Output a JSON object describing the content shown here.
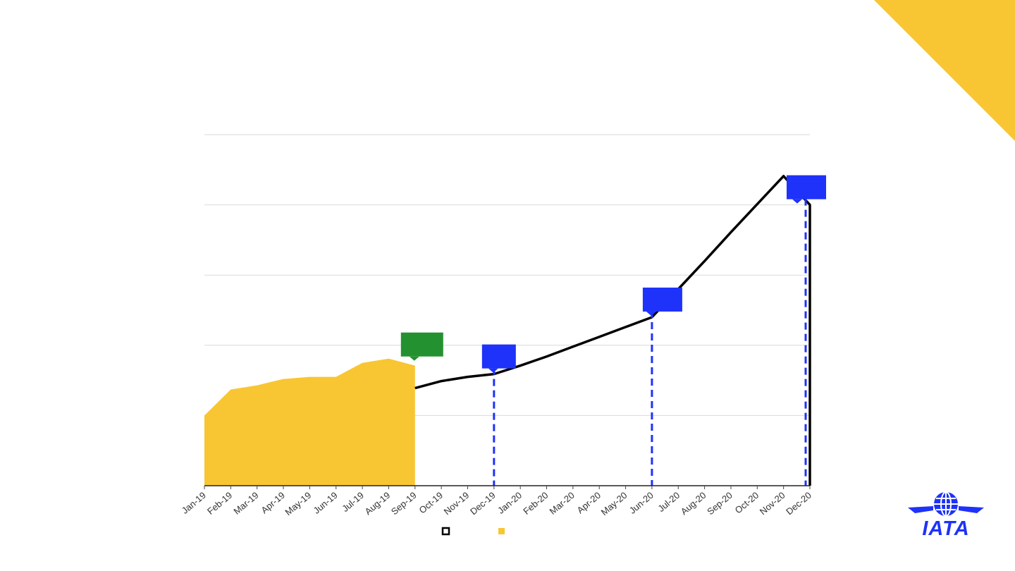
{
  "chart_data": {
    "type": "line",
    "categories": [
      "Jan-19",
      "Feb-19",
      "Mar-19",
      "Apr-19",
      "May-19",
      "Jun-19",
      "Jul-19",
      "Aug-19",
      "Sep-19",
      "Oct-19",
      "Nov-19",
      "Dec-19",
      "Jan-20",
      "Feb-20",
      "Mar-20",
      "Apr-20",
      "May-20",
      "Jun-20",
      "Jul-20",
      "Aug-20",
      "Sep-20",
      "Oct-20",
      "Nov-20",
      "Dec-20"
    ],
    "ylim": [
      0,
      5
    ],
    "grid": true,
    "legend_position": "bottom-center",
    "series": [
      {
        "style": "line",
        "color": "#000000",
        "values": [
          null,
          null,
          null,
          null,
          null,
          null,
          null,
          null,
          1.39,
          1.49,
          1.55,
          1.59,
          1.71,
          1.84,
          1.98,
          2.12,
          2.26,
          2.4,
          2.8,
          3.2,
          3.61,
          4.01,
          4.41,
          4.0
        ]
      },
      {
        "style": "area",
        "color": "#f8c633",
        "values": [
          1.0,
          1.37,
          1.43,
          1.52,
          1.55,
          1.55,
          1.75,
          1.81,
          1.71,
          null,
          null,
          null,
          null,
          null,
          null,
          null,
          null,
          null,
          null,
          null,
          null,
          null,
          null,
          null
        ]
      }
    ],
    "markers": [
      {
        "category": "Sep-19",
        "color": "#239130",
        "dashed_line": false
      },
      {
        "category": "Dec-19",
        "color": "#1e32fa",
        "dashed_line": true
      },
      {
        "category": "Jun-20",
        "color": "#1e32fa",
        "dashed_line": true
      },
      {
        "category": "Dec-20",
        "color": "#1e32fa",
        "dashed_line": true
      }
    ]
  },
  "brand": {
    "logo_text": "IATA",
    "accent_yellow": "#f8c633",
    "accent_blue": "#1e32fa",
    "accent_green": "#239130"
  }
}
